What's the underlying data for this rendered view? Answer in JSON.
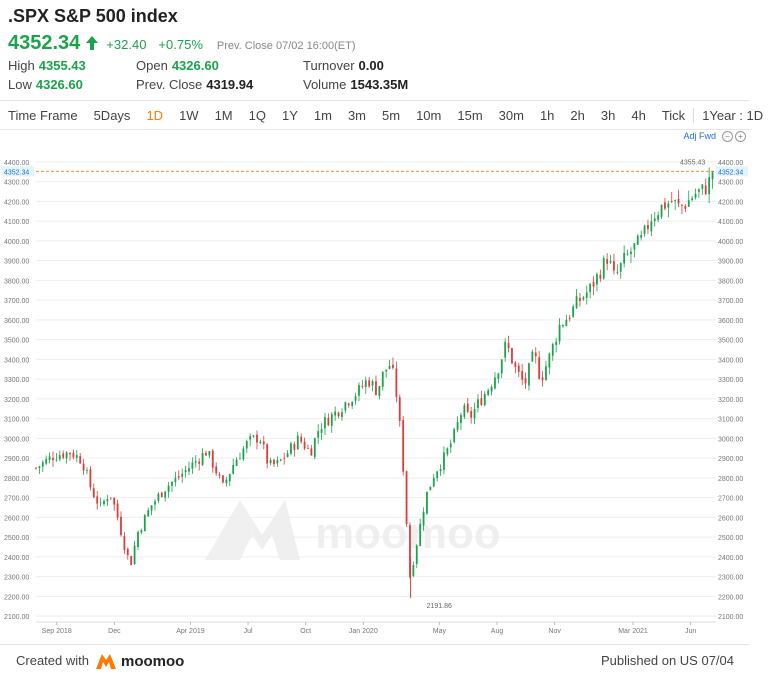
{
  "header": {
    "title": ".SPX S&P 500 index",
    "price": "4352.34",
    "change": "+32.40",
    "change_pct": "+0.75%",
    "prev_close_label": "Prev. Close",
    "prev_close_time": "07/02 16:00(ET)"
  },
  "stats": {
    "high_label": "High",
    "high": "4355.43",
    "low_label": "Low",
    "low": "4326.60",
    "open_label": "Open",
    "open": "4326.60",
    "prevclose_label": "Prev. Close",
    "prevclose": "4319.94",
    "turnover_label": "Turnover",
    "turnover": "0.00",
    "volume_label": "Volume",
    "volume": "1543.35M"
  },
  "tabs": [
    "Time Frame",
    "5Days",
    "1D",
    "1W",
    "1M",
    "1Q",
    "1Y",
    "1m",
    "3m",
    "5m",
    "10m",
    "15m",
    "30m",
    "1h",
    "2h",
    "3h",
    "4h",
    "Tick",
    "1Year : 1D"
  ],
  "active_tab": "1D",
  "adj_label": "Adj Fwd",
  "footer": {
    "created": "Created with",
    "brand": "moomoo",
    "published": "Published on US 07/04"
  },
  "colors": {
    "up": "#1aa34a",
    "down": "#e03b3b",
    "accent": "#ff7a00",
    "link": "#1f6fd1"
  },
  "chart_data": {
    "type": "candlestick",
    "y_ticks": [
      "4400.00",
      "4300.00",
      "4200.00",
      "4100.00",
      "4000.00",
      "3900.00",
      "3800.00",
      "3700.00",
      "3600.00",
      "3500.00",
      "3400.00",
      "3300.00",
      "3200.00",
      "3100.00",
      "3000.00",
      "2900.00",
      "2800.00",
      "2700.00",
      "2600.00",
      "2500.00",
      "2400.00",
      "2300.00",
      "2200.00",
      "2100.00"
    ],
    "x_ticks": [
      "Sep 2018",
      "Dec",
      "Apr 2019",
      "Jul",
      "Oct",
      "Jan 2020",
      "May",
      "Aug",
      "Nov",
      "Mar 2021",
      "Jun"
    ],
    "ylim": [
      2070,
      4440
    ],
    "last_price_label": "4352.34",
    "last_price": 4352.34,
    "max_label": "4355.43",
    "max_value": 4355.43,
    "min_label": "2191.86",
    "min_value": 2191.86,
    "x_range": [
      2018.58,
      2021.53
    ],
    "x_tick_positions": [
      2018.67,
      2018.92,
      2019.25,
      2019.5,
      2019.75,
      2020.0,
      2020.33,
      2020.58,
      2020.83,
      2021.17,
      2021.42
    ],
    "path": [
      [
        2018.58,
        2850
      ],
      [
        2018.66,
        2915
      ],
      [
        2018.73,
        2930
      ],
      [
        2018.78,
        2890
      ],
      [
        2018.82,
        2740
      ],
      [
        2018.86,
        2650
      ],
      [
        2018.9,
        2730
      ],
      [
        2018.93,
        2620
      ],
      [
        2018.97,
        2430
      ],
      [
        2018.99,
        2360
      ],
      [
        2019.02,
        2520
      ],
      [
        2019.08,
        2660
      ],
      [
        2019.14,
        2750
      ],
      [
        2019.2,
        2805
      ],
      [
        2019.26,
        2870
      ],
      [
        2019.32,
        2935
      ],
      [
        2019.36,
        2840
      ],
      [
        2019.39,
        2750
      ],
      [
        2019.44,
        2880
      ],
      [
        2019.5,
        2980
      ],
      [
        2019.55,
        3010
      ],
      [
        2019.59,
        2860
      ],
      [
        2019.63,
        2870
      ],
      [
        2019.68,
        2940
      ],
      [
        2019.72,
        3000
      ],
      [
        2019.77,
        2930
      ],
      [
        2019.81,
        3060
      ],
      [
        2019.87,
        3120
      ],
      [
        2019.93,
        3190
      ],
      [
        2019.98,
        3240
      ],
      [
        2020.02,
        3300
      ],
      [
        2020.06,
        3240
      ],
      [
        2020.09,
        3340
      ],
      [
        2020.12,
        3380
      ],
      [
        2020.15,
        3180
      ],
      [
        2020.18,
        2750
      ],
      [
        2020.2,
        2290
      ],
      [
        2020.22,
        2400
      ],
      [
        2020.24,
        2520
      ],
      [
        2020.27,
        2700
      ],
      [
        2020.31,
        2830
      ],
      [
        2020.35,
        2900
      ],
      [
        2020.39,
        3000
      ],
      [
        2020.43,
        3150
      ],
      [
        2020.46,
        3100
      ],
      [
        2020.5,
        3180
      ],
      [
        2020.54,
        3250
      ],
      [
        2020.58,
        3340
      ],
      [
        2020.62,
        3480
      ],
      [
        2020.66,
        3350
      ],
      [
        2020.7,
        3270
      ],
      [
        2020.74,
        3430
      ],
      [
        2020.77,
        3300
      ],
      [
        2020.81,
        3420
      ],
      [
        2020.85,
        3570
      ],
      [
        2020.89,
        3620
      ],
      [
        2020.93,
        3690
      ],
      [
        2020.98,
        3750
      ],
      [
        2021.02,
        3830
      ],
      [
        2021.06,
        3920
      ],
      [
        2021.09,
        3810
      ],
      [
        2021.13,
        3900
      ],
      [
        2021.17,
        3960
      ],
      [
        2021.21,
        4010
      ],
      [
        2021.25,
        4120
      ],
      [
        2021.3,
        4180
      ],
      [
        2021.34,
        4200
      ],
      [
        2021.37,
        4170
      ],
      [
        2021.4,
        4190
      ],
      [
        2021.44,
        4240
      ],
      [
        2021.48,
        4260
      ],
      [
        2021.51,
        4320
      ]
    ]
  }
}
